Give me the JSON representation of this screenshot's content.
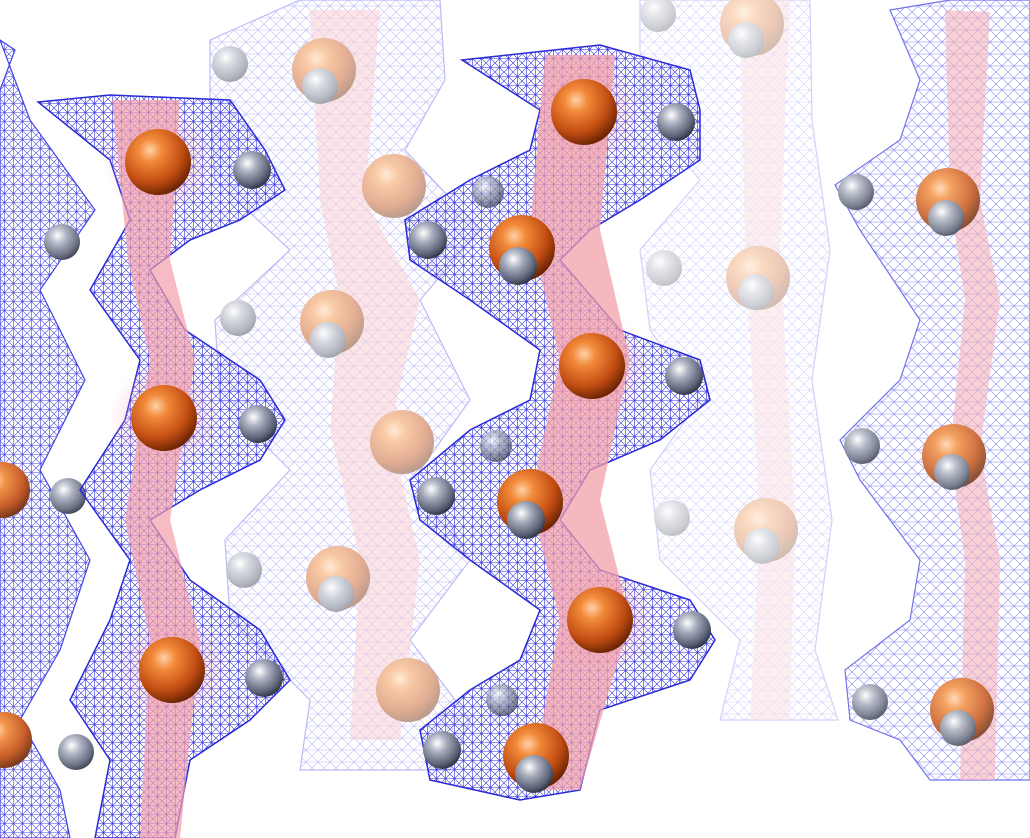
{
  "scene": {
    "kind": "molecular-density-render",
    "background": "#ffffff",
    "mesh_color": "#3030e0",
    "ribbon_color": "#f4a0a8",
    "heavy_atom_color": "#d2581f",
    "light_atom_color": "#7b8296",
    "chain_count": 7,
    "chains": [
      {
        "id": "chain-1",
        "opacity": 1.0,
        "depth": "front"
      },
      {
        "id": "chain-2",
        "opacity": 1.0,
        "depth": "front"
      },
      {
        "id": "chain-3",
        "opacity": 0.45,
        "depth": "middle"
      },
      {
        "id": "chain-4",
        "opacity": 1.0,
        "depth": "front"
      },
      {
        "id": "chain-5",
        "opacity": 0.3,
        "depth": "back"
      },
      {
        "id": "chain-6",
        "opacity": 0.8,
        "depth": "middle"
      },
      {
        "id": "chain-0",
        "opacity": 0.9,
        "depth": "front"
      }
    ]
  }
}
